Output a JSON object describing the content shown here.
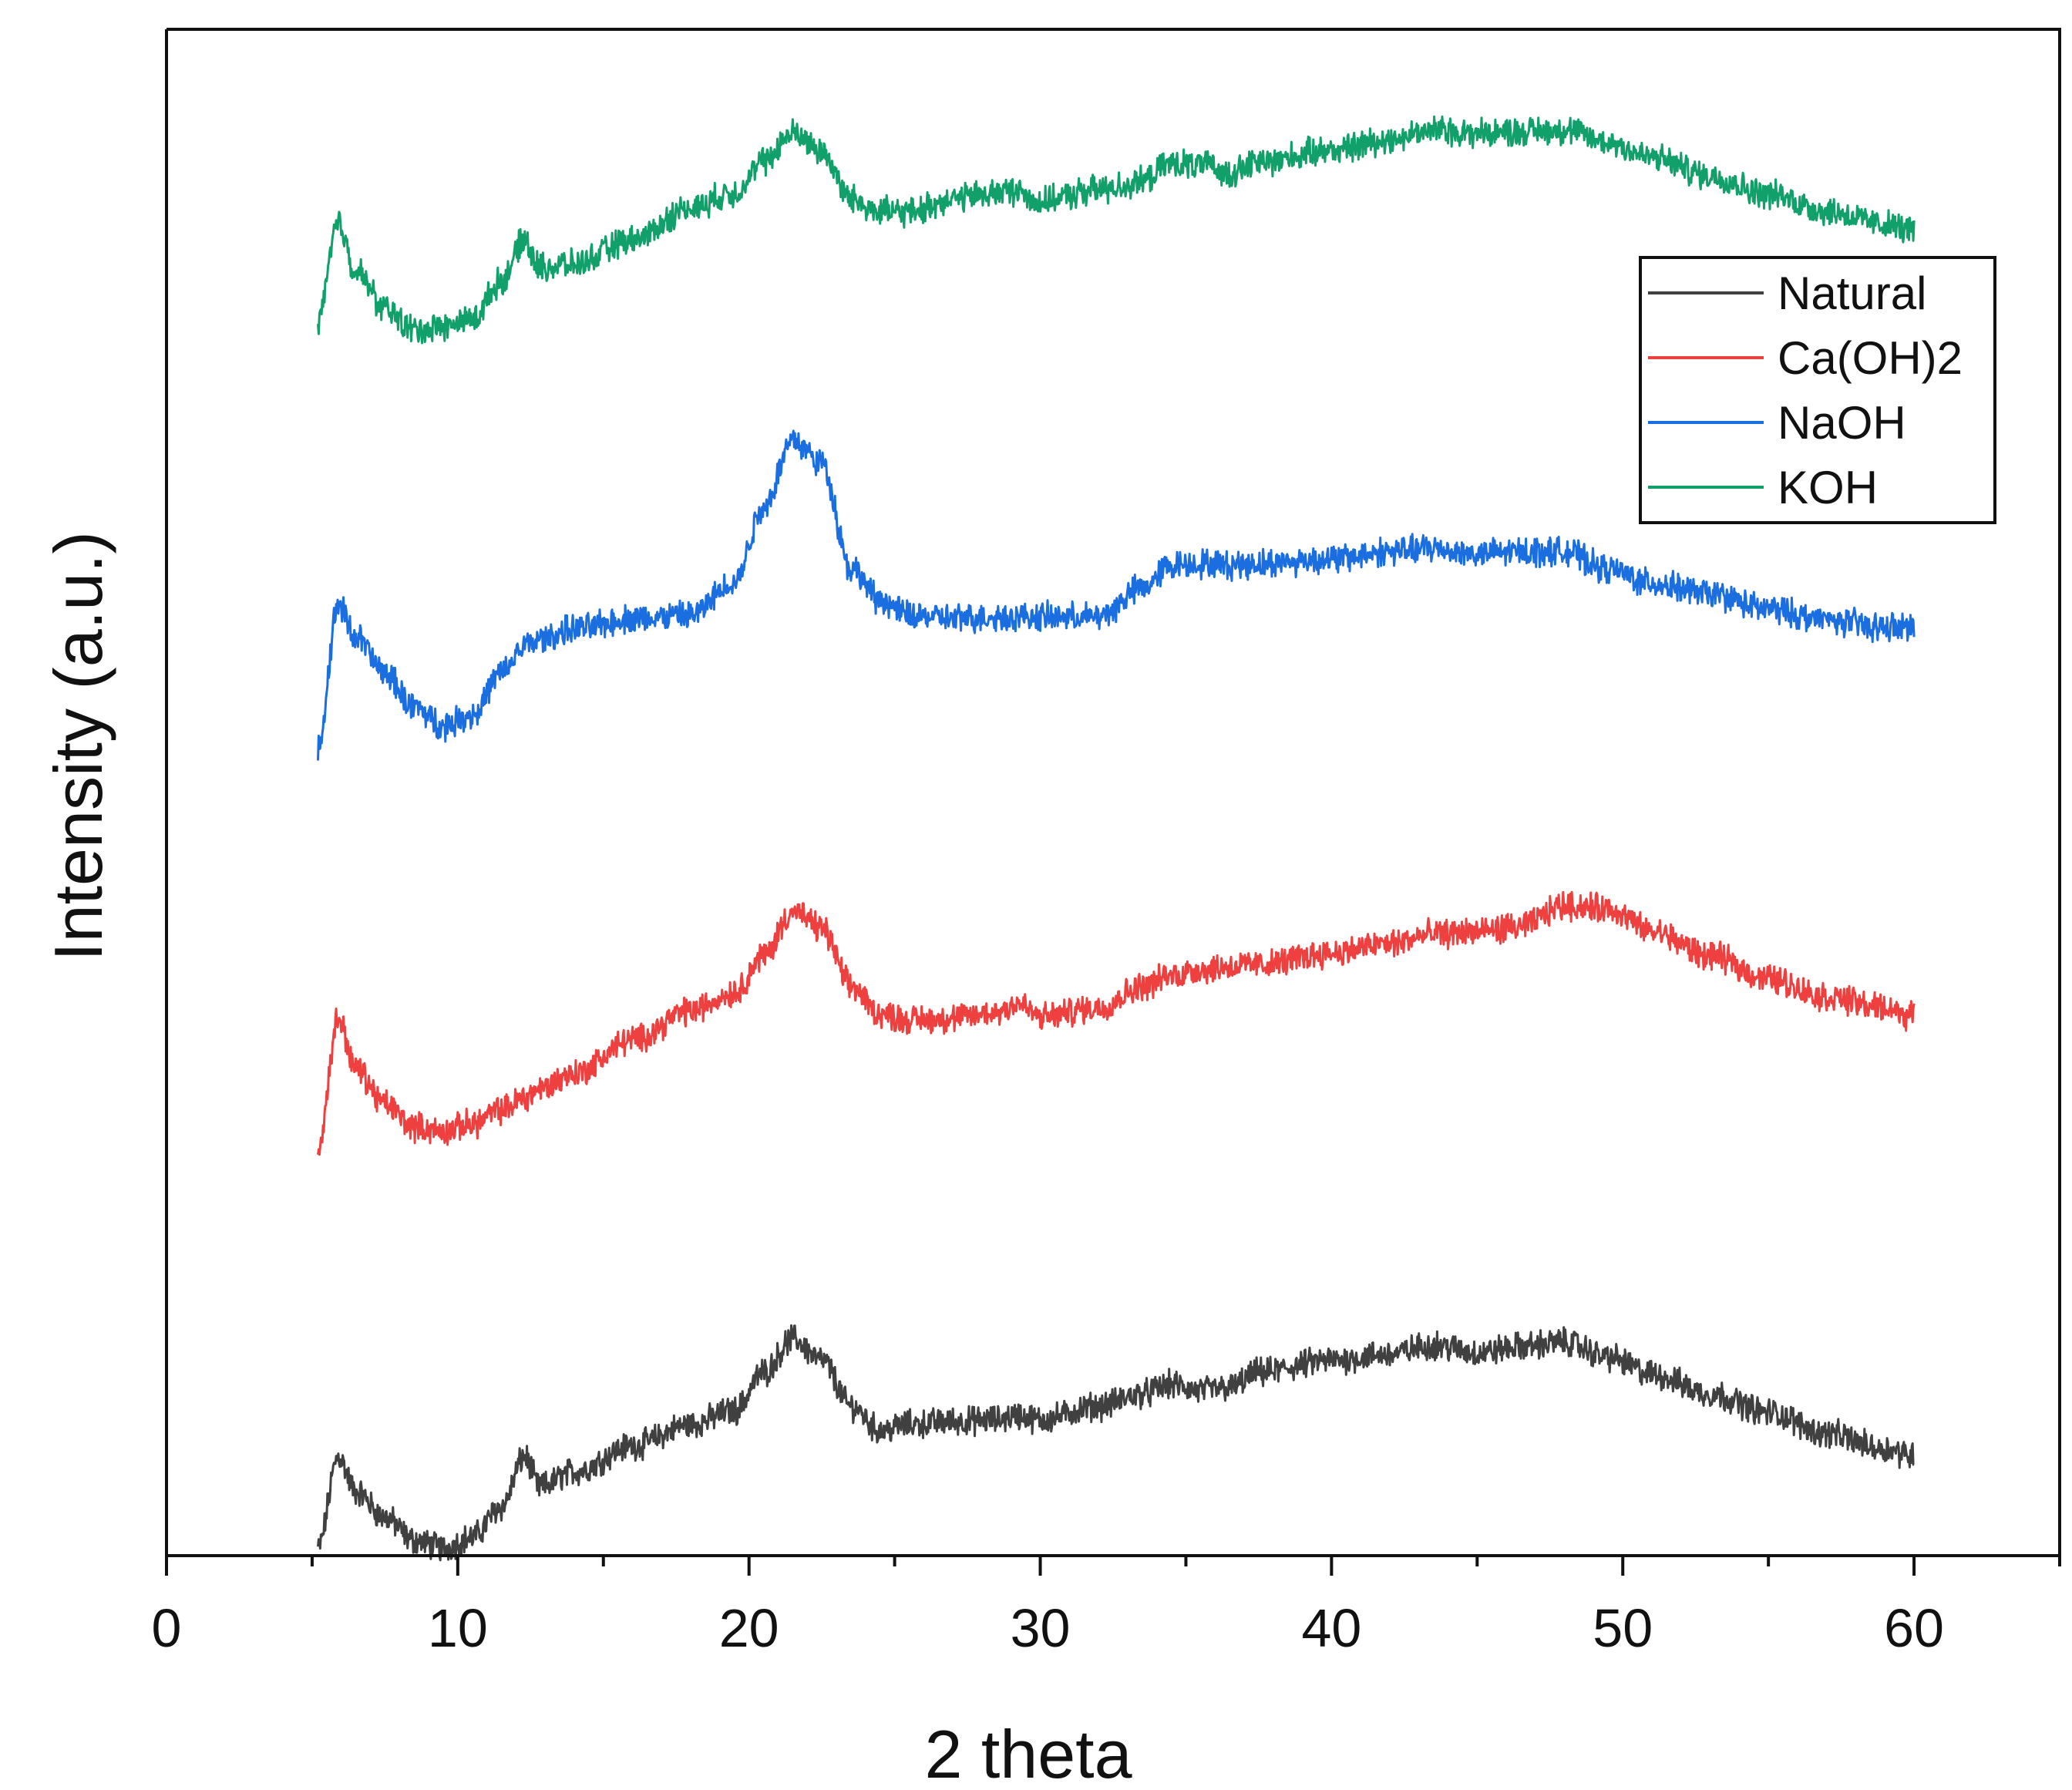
{
  "chart_data": {
    "type": "line",
    "title": "",
    "xlabel": "2 theta",
    "ylabel": "Intensity (a.u.)",
    "xlim": [
      0,
      65
    ],
    "ylim": [
      0,
      100
    ],
    "xticks": [
      0,
      10,
      20,
      30,
      40,
      50,
      60
    ],
    "x_minor_step": 5,
    "yticks": [],
    "grid": false,
    "legend_position": "top-right",
    "x": [
      5.2,
      5.9,
      6.5,
      7.5,
      8.5,
      9.5,
      10.5,
      11.5,
      12.3,
      12.8,
      14,
      16,
      18,
      19.5,
      20.5,
      21.5,
      22.5,
      23.5,
      24.5,
      25.5,
      27,
      28.5,
      29.2,
      30,
      32,
      33.5,
      34.5,
      35.5,
      36.5,
      37.5,
      40,
      42,
      43.5,
      45,
      46.5,
      48,
      49.5,
      51,
      53,
      55,
      57,
      59,
      60
    ],
    "series": [
      {
        "name": "Natural",
        "color": "#404040",
        "values": [
          0.5,
          6.5,
          4.2,
          2.5,
          1.0,
          0.5,
          1.2,
          3.2,
          6.5,
          4.5,
          5.5,
          7.2,
          8.6,
          9.5,
          12.0,
          14.2,
          12.8,
          9.8,
          8.2,
          8.6,
          8.8,
          8.9,
          9.2,
          8.9,
          9.8,
          10.6,
          11.2,
          10.8,
          11.0,
          12.0,
          12.8,
          13.2,
          13.8,
          13.3,
          13.7,
          14.0,
          13.0,
          11.9,
          10.6,
          9.4,
          8.0,
          7.0,
          6.6
        ]
      },
      {
        "name": "Ca(OH)2",
        "color": "#ef4040",
        "values": [
          26.7,
          35.2,
          31.9,
          29.6,
          28.1,
          27.8,
          28.3,
          29.2,
          30.0,
          30.6,
          31.6,
          33.8,
          35.7,
          36.9,
          39.3,
          42.2,
          41.1,
          37.3,
          35.5,
          35.1,
          35.2,
          35.6,
          36.2,
          35.3,
          35.9,
          37.3,
          38.0,
          38.4,
          38.6,
          38.7,
          39.5,
          40.1,
          40.7,
          40.9,
          41.2,
          42.6,
          42.4,
          40.9,
          39.3,
          37.8,
          36.6,
          35.9,
          35.3
        ]
      },
      {
        "name": "NaOH",
        "color": "#1a6ee0",
        "values": [
          53.0,
          62.3,
          60.2,
          57.8,
          55.6,
          54.4,
          55.1,
          57.8,
          59.6,
          60.0,
          60.7,
          61.4,
          61.6,
          63.8,
          68.7,
          73.1,
          71.6,
          64.7,
          62.6,
          61.6,
          61.4,
          61.5,
          61.5,
          61.5,
          61.5,
          63.4,
          64.9,
          65.0,
          64.9,
          65.0,
          65.3,
          65.8,
          66.0,
          65.6,
          65.8,
          65.8,
          64.6,
          63.7,
          63.0,
          62.0,
          61.3,
          60.8,
          60.8
        ]
      },
      {
        "name": "KOH",
        "color": "#12a06a",
        "values": [
          81.1,
          87.3,
          84.2,
          81.7,
          80.3,
          80.5,
          81.0,
          83.5,
          86.2,
          84.4,
          84.6,
          86.2,
          88.3,
          89.3,
          91.3,
          93.2,
          92.0,
          88.9,
          88.1,
          88.0,
          88.9,
          89.3,
          89.4,
          88.7,
          89.5,
          90.0,
          91.2,
          91.1,
          90.6,
          91.3,
          92.1,
          92.8,
          93.4,
          93.2,
          93.3,
          93.4,
          92.6,
          91.6,
          90.4,
          89.2,
          88.1,
          87.2,
          86.8
        ]
      }
    ]
  }
}
